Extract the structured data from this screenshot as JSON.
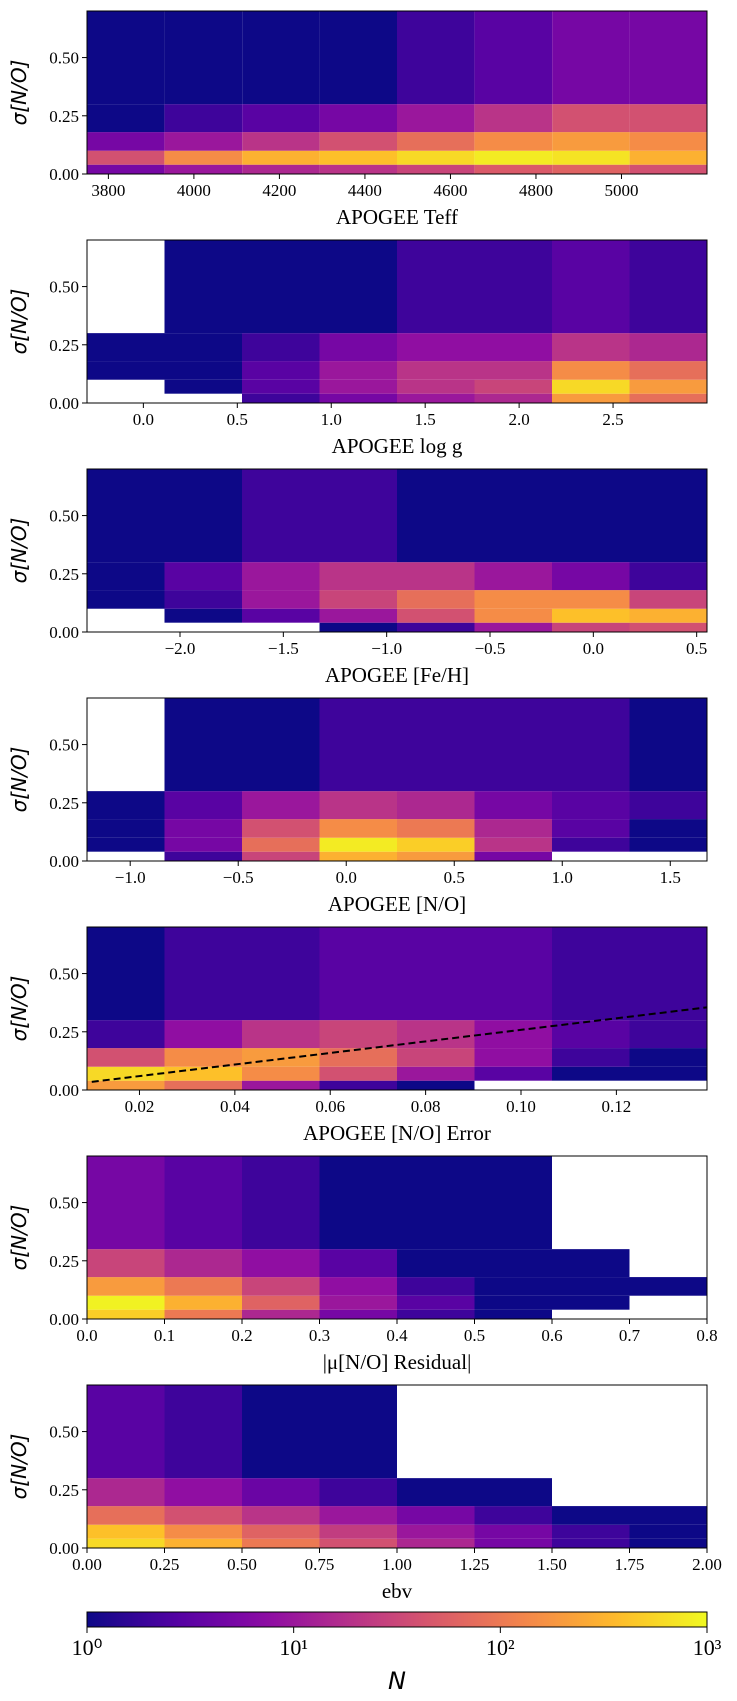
{
  "chart_data": [
    {
      "type": "heatmap",
      "xlabel": "APOGEE Teff",
      "ylabel": "σ[N/O]",
      "colormap": "plasma",
      "log_color": true,
      "clim": [
        1,
        1000
      ],
      "xlim": [
        3750,
        5200
      ],
      "xticks": [
        3800,
        4000,
        4200,
        4400,
        4600,
        4800,
        5000
      ],
      "ylim": [
        0,
        0.7
      ],
      "yticks": [
        {
          "value": 0,
          "label": "0.00"
        },
        {
          "value": 0.25,
          "label": "0.25"
        },
        {
          "value": 0.5,
          "label": "0.50"
        }
      ],
      "x_bins": [
        3750,
        3931,
        4113,
        4294,
        4475,
        4656,
        4838,
        5019,
        5200
      ],
      "y_bins": [
        0,
        0.04,
        0.1,
        0.18,
        0.3,
        0.7
      ],
      "counts": [
        [
          5,
          10,
          15,
          20,
          30,
          50,
          60,
          40
        ],
        [
          40,
          150,
          300,
          400,
          600,
          800,
          700,
          300
        ],
        [
          5,
          10,
          20,
          40,
          80,
          150,
          200,
          150
        ],
        [
          1,
          2,
          3,
          5,
          10,
          20,
          40,
          40
        ],
        [
          1,
          1,
          1,
          1,
          2,
          3,
          5,
          5
        ]
      ]
    },
    {
      "type": "heatmap",
      "xlabel": "APOGEE log g",
      "ylabel": "σ[N/O]",
      "colormap": "plasma",
      "log_color": true,
      "clim": [
        1,
        1000
      ],
      "xlim": [
        -0.3,
        3.0
      ],
      "xticks": [
        {
          "value": 0,
          "label": "0.0"
        },
        0.5,
        {
          "value": 1,
          "label": "1.0"
        },
        1.5,
        {
          "value": 2,
          "label": "2.0"
        },
        2.5
      ],
      "ylim": [
        0,
        0.7
      ],
      "yticks": [
        {
          "value": 0,
          "label": "0.00"
        },
        {
          "value": 0.25,
          "label": "0.25"
        },
        {
          "value": 0.5,
          "label": "0.50"
        }
      ],
      "x_bins": [
        -0.3,
        0.1125,
        0.525,
        0.9375,
        1.35,
        1.7625,
        2.175,
        2.5875,
        3.0
      ],
      "y_bins": [
        0,
        0.04,
        0.1,
        0.18,
        0.3,
        0.7
      ],
      "counts": [
        [
          null,
          null,
          2,
          5,
          10,
          15,
          200,
          80
        ],
        [
          null,
          1,
          3,
          10,
          20,
          30,
          600,
          200
        ],
        [
          1,
          1,
          3,
          10,
          20,
          20,
          150,
          80
        ],
        [
          1,
          1,
          2,
          5,
          8,
          8,
          20,
          15
        ],
        [
          null,
          1,
          1,
          1,
          2,
          2,
          3,
          2
        ]
      ]
    },
    {
      "type": "heatmap",
      "xlabel": "APOGEE [Fe/H]",
      "ylabel": "σ[N/O]",
      "colormap": "plasma",
      "log_color": true,
      "clim": [
        1,
        1000
      ],
      "xlim": [
        -2.45,
        0.55
      ],
      "xticks": [
        {
          "value": -2,
          "label": "−2.0"
        },
        {
          "value": -1.5,
          "label": "−1.5"
        },
        {
          "value": -1,
          "label": "−1.0"
        },
        {
          "value": -0.5,
          "label": "−0.5"
        },
        {
          "value": 0,
          "label": "0.0"
        },
        0.5
      ],
      "ylim": [
        0,
        0.7
      ],
      "yticks": [
        {
          "value": 0,
          "label": "0.00"
        },
        {
          "value": 0.25,
          "label": "0.25"
        },
        {
          "value": 0.5,
          "label": "0.50"
        }
      ],
      "x_bins": [
        -2.45,
        -2.075,
        -1.7,
        -1.325,
        -0.95,
        -0.575,
        -0.2,
        0.175,
        0.55
      ],
      "y_bins": [
        0,
        0.04,
        0.1,
        0.18,
        0.3,
        0.7
      ],
      "counts": [
        [
          null,
          null,
          null,
          1,
          2,
          10,
          30,
          40
        ],
        [
          null,
          1,
          3,
          10,
          40,
          150,
          400,
          300
        ],
        [
          1,
          2,
          10,
          30,
          80,
          150,
          150,
          30
        ],
        [
          1,
          3,
          10,
          20,
          20,
          10,
          5,
          2
        ],
        [
          1,
          1,
          2,
          2,
          1,
          1,
          1,
          1
        ]
      ]
    },
    {
      "type": "heatmap",
      "xlabel": "APOGEE [N/O]",
      "ylabel": "σ[N/O]",
      "colormap": "plasma",
      "log_color": true,
      "clim": [
        1,
        1000
      ],
      "xlim": [
        -1.2,
        1.67
      ],
      "xticks": [
        {
          "value": -1,
          "label": "−1.0"
        },
        {
          "value": -0.5,
          "label": "−0.5"
        },
        {
          "value": 0,
          "label": "0.0"
        },
        0.5,
        {
          "value": 1,
          "label": "1.0"
        },
        1.5
      ],
      "ylim": [
        0,
        0.7
      ],
      "yticks": [
        {
          "value": 0,
          "label": "0.00"
        },
        {
          "value": 0.25,
          "label": "0.25"
        },
        {
          "value": 0.5,
          "label": "0.50"
        }
      ],
      "x_bins": [
        -1.2,
        -0.84125,
        -0.4825,
        -0.12375,
        0.235,
        0.59375,
        0.9525,
        1.31125,
        1.67
      ],
      "y_bins": [
        0,
        0.04,
        0.1,
        0.18,
        0.3,
        0.7
      ],
      "counts": [
        [
          null,
          2,
          30,
          300,
          200,
          5,
          null,
          null
        ],
        [
          1,
          5,
          80,
          800,
          500,
          20,
          2,
          1
        ],
        [
          1,
          5,
          40,
          150,
          100,
          15,
          3,
          1
        ],
        [
          1,
          3,
          10,
          20,
          15,
          5,
          3,
          2
        ],
        [
          null,
          1,
          1,
          2,
          2,
          2,
          2,
          1
        ]
      ]
    },
    {
      "type": "heatmap",
      "xlabel": "APOGEE [N/O] Error",
      "ylabel": "σ[N/O]",
      "colormap": "plasma",
      "log_color": true,
      "clim": [
        1,
        1000
      ],
      "xlim": [
        0.009,
        0.139
      ],
      "xticks": [
        0.02,
        0.04,
        0.06,
        0.08,
        {
          "value": 0.1,
          "label": "0.10"
        },
        0.12
      ],
      "ylim": [
        0,
        0.7
      ],
      "yticks": [
        {
          "value": 0,
          "label": "0.00"
        },
        {
          "value": 0.25,
          "label": "0.25"
        },
        {
          "value": 0.5,
          "label": "0.50"
        }
      ],
      "x_bins": [
        0.009,
        0.02525,
        0.0415,
        0.05775,
        0.074,
        0.09025,
        0.1065,
        0.12275,
        0.139
      ],
      "y_bins": [
        0,
        0.04,
        0.1,
        0.18,
        0.3,
        0.7
      ],
      "counts": [
        [
          200,
          80,
          10,
          2,
          1,
          null,
          null,
          null
        ],
        [
          600,
          400,
          150,
          40,
          10,
          3,
          1,
          1
        ],
        [
          40,
          150,
          200,
          80,
          30,
          8,
          2,
          1
        ],
        [
          2,
          8,
          20,
          30,
          20,
          8,
          3,
          2
        ],
        [
          1,
          2,
          2,
          3,
          3,
          3,
          2,
          2
        ]
      ],
      "fit_line": {
        "x": [
          0.01,
          0.139
        ],
        "y": [
          0.035,
          0.355
        ],
        "color": "#000000",
        "dashed": true
      }
    },
    {
      "type": "heatmap",
      "xlabel": "|μ[N/O] Residual|",
      "ylabel": "σ[N/O]",
      "colormap": "plasma",
      "log_color": true,
      "clim": [
        1,
        1000
      ],
      "xlim": [
        0,
        0.8
      ],
      "xticks": [
        {
          "value": 0,
          "label": "0.0"
        },
        0.1,
        0.2,
        0.3,
        0.4,
        0.5,
        0.6,
        0.7,
        0.8
      ],
      "ylim": [
        0,
        0.7
      ],
      "yticks": [
        {
          "value": 0,
          "label": "0.00"
        },
        {
          "value": 0.25,
          "label": "0.25"
        },
        {
          "value": 0.5,
          "label": "0.50"
        }
      ],
      "x_bins": [
        0,
        0.1,
        0.2,
        0.3,
        0.4,
        0.5,
        0.6,
        0.7,
        0.8
      ],
      "y_bins": [
        0,
        0.04,
        0.1,
        0.18,
        0.3,
        0.7
      ],
      "counts": [
        [
          500,
          100,
          15,
          5,
          2,
          1,
          null,
          null
        ],
        [
          900,
          300,
          60,
          10,
          3,
          1,
          1,
          null
        ],
        [
          200,
          100,
          30,
          8,
          2,
          1,
          1,
          1
        ],
        [
          30,
          15,
          8,
          3,
          1,
          1,
          1,
          null
        ],
        [
          5,
          3,
          2,
          1,
          1,
          1,
          null,
          null
        ]
      ]
    },
    {
      "type": "heatmap",
      "xlabel": "ebv",
      "ylabel": "σ[N/O]",
      "colormap": "plasma",
      "log_color": true,
      "clim": [
        1,
        1000
      ],
      "xlim": [
        0,
        2
      ],
      "xticks": [
        {
          "value": 0,
          "label": "0.00"
        },
        0.25,
        {
          "value": 0.5,
          "label": "0.50"
        },
        0.75,
        {
          "value": 1,
          "label": "1.00"
        },
        1.25,
        {
          "value": 1.5,
          "label": "1.50"
        },
        1.75,
        {
          "value": 2,
          "label": "2.00"
        }
      ],
      "ylim": [
        0,
        0.7
      ],
      "yticks": [
        {
          "value": 0,
          "label": "0.00"
        },
        {
          "value": 0.25,
          "label": "0.25"
        },
        {
          "value": 0.5,
          "label": "0.50"
        }
      ],
      "x_bins": [
        0,
        0.25,
        0.5,
        0.75,
        1.0,
        1.25,
        1.5,
        1.75,
        2.0
      ],
      "y_bins": [
        0,
        0.04,
        0.1,
        0.18,
        0.3,
        0.7
      ],
      "counts": [
        [
          600,
          300,
          100,
          40,
          15,
          5,
          2,
          1
        ],
        [
          400,
          150,
          60,
          25,
          10,
          5,
          2,
          1
        ],
        [
          80,
          40,
          20,
          10,
          5,
          2,
          1,
          1
        ],
        [
          15,
          8,
          4,
          2,
          1,
          1,
          null,
          null
        ],
        [
          3,
          2,
          1,
          1,
          null,
          null,
          null,
          null
        ]
      ]
    },
    {
      "type": "colorbar",
      "xlabel": "N",
      "colormap": "plasma",
      "log_scale": true,
      "xlim": [
        1,
        1000
      ],
      "xticks": [
        {
          "value": 1,
          "label": "10⁰"
        },
        {
          "value": 10,
          "label": "10¹"
        },
        {
          "value": 100,
          "label": "10²"
        },
        {
          "value": 1000,
          "label": "10³"
        }
      ]
    }
  ]
}
